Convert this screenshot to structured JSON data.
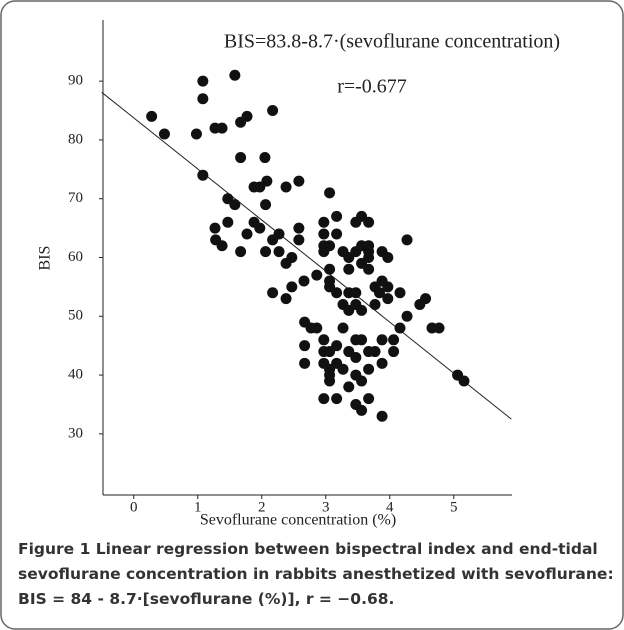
{
  "chart_data": {
    "type": "scatter",
    "annotations": [
      "BIS=83.8-8.7·(sevoflurane concentration)",
      "r=-0.677"
    ],
    "xlabel": "Sevoflurane concentration (%)",
    "ylabel": "BIS",
    "x": [
      0.28,
      0.48,
      1.08,
      1.08,
      0.98,
      1.27,
      1.38,
      1.58,
      1.67,
      1.77,
      2.17,
      1.67,
      2.05,
      1.08,
      1.97,
      1.88,
      2.08,
      2.38,
      2.58,
      3.06,
      1.47,
      1.58,
      1.47,
      2.06,
      1.88,
      1.97,
      1.27,
      1.77,
      2.27,
      2.17,
      2.58,
      2.58,
      1.28,
      1.38,
      1.67,
      2.06,
      2.27,
      2.47,
      2.38,
      2.17,
      2.47,
      2.38,
      2.66,
      2.97,
      3.17,
      3.47,
      3.56,
      3.67,
      2.97,
      3.17,
      3.06,
      2.97,
      2.97,
      3.27,
      3.36,
      3.47,
      3.56,
      3.67,
      3.67,
      3.67,
      3.88,
      3.97,
      3.06,
      3.36,
      3.56,
      3.67,
      2.86,
      3.06,
      3.06,
      3.17,
      3.36,
      3.47,
      3.88,
      3.97,
      3.77,
      3.84,
      3.97,
      4.16,
      3.27,
      3.36,
      3.47,
      3.56,
      3.77,
      4.27,
      4.47,
      4.56,
      4.66,
      4.77,
      4.16,
      4.27,
      2.67,
      2.77,
      2.86,
      3.27,
      2.67,
      2.97,
      3.47,
      3.56,
      3.77,
      3.88,
      4.06,
      2.97,
      3.06,
      3.17,
      3.36,
      3.47,
      3.67,
      2.67,
      2.97,
      3.17,
      3.27,
      3.06,
      3.06,
      3.06,
      3.47,
      3.67,
      3.88,
      3.36,
      3.56,
      2.97,
      3.17,
      3.47,
      3.56,
      3.67,
      3.88,
      5.06,
      5.16,
      4.06
    ],
    "values": [
      84,
      81,
      90,
      87,
      81,
      82,
      82,
      91,
      83,
      84,
      85,
      77,
      77,
      74,
      72,
      72,
      73,
      72,
      73,
      71,
      70,
      69,
      66,
      69,
      66,
      65,
      65,
      64,
      64,
      63,
      65,
      63,
      63,
      62,
      61,
      61,
      61,
      60,
      59,
      54,
      55,
      53,
      56,
      66,
      67,
      66,
      67,
      66,
      64,
      64,
      62,
      62,
      61,
      61,
      60,
      61,
      62,
      62,
      60,
      61,
      61,
      60,
      58,
      58,
      59,
      58,
      57,
      56,
      55,
      54,
      54,
      54,
      56,
      55,
      55,
      54,
      53,
      54,
      52,
      51,
      52,
      51,
      52,
      50,
      52,
      53,
      48,
      48,
      48,
      63,
      49,
      48,
      48,
      48,
      45,
      46,
      46,
      46,
      44,
      46,
      44,
      44,
      44,
      45,
      44,
      43,
      44,
      42,
      42,
      42,
      41,
      41,
      40,
      39,
      40,
      41,
      42,
      38,
      39,
      36,
      36,
      35,
      34,
      36,
      33,
      40,
      39,
      46
    ],
    "color": "#111111",
    "regression_line": {
      "x": [
        -0.5,
        5.9
      ],
      "y": [
        88.1,
        32.5
      ]
    },
    "xlim": [
      -0.48,
      5.91
    ],
    "ylim": [
      19.6,
      100.4
    ],
    "xticks": [
      0,
      1,
      2,
      3,
      4,
      5
    ],
    "yticks": [
      30,
      40,
      50,
      60,
      70,
      80,
      90
    ]
  },
  "figure": {
    "label": "Figure 1",
    "caption": "Linear regression between bispectral index and end-tidal sevoflurane concentration in rabbits anesthetized with sevoflurane: BIS = 84 - 8.7·[sevoflurane (%)], r = −0.68."
  }
}
